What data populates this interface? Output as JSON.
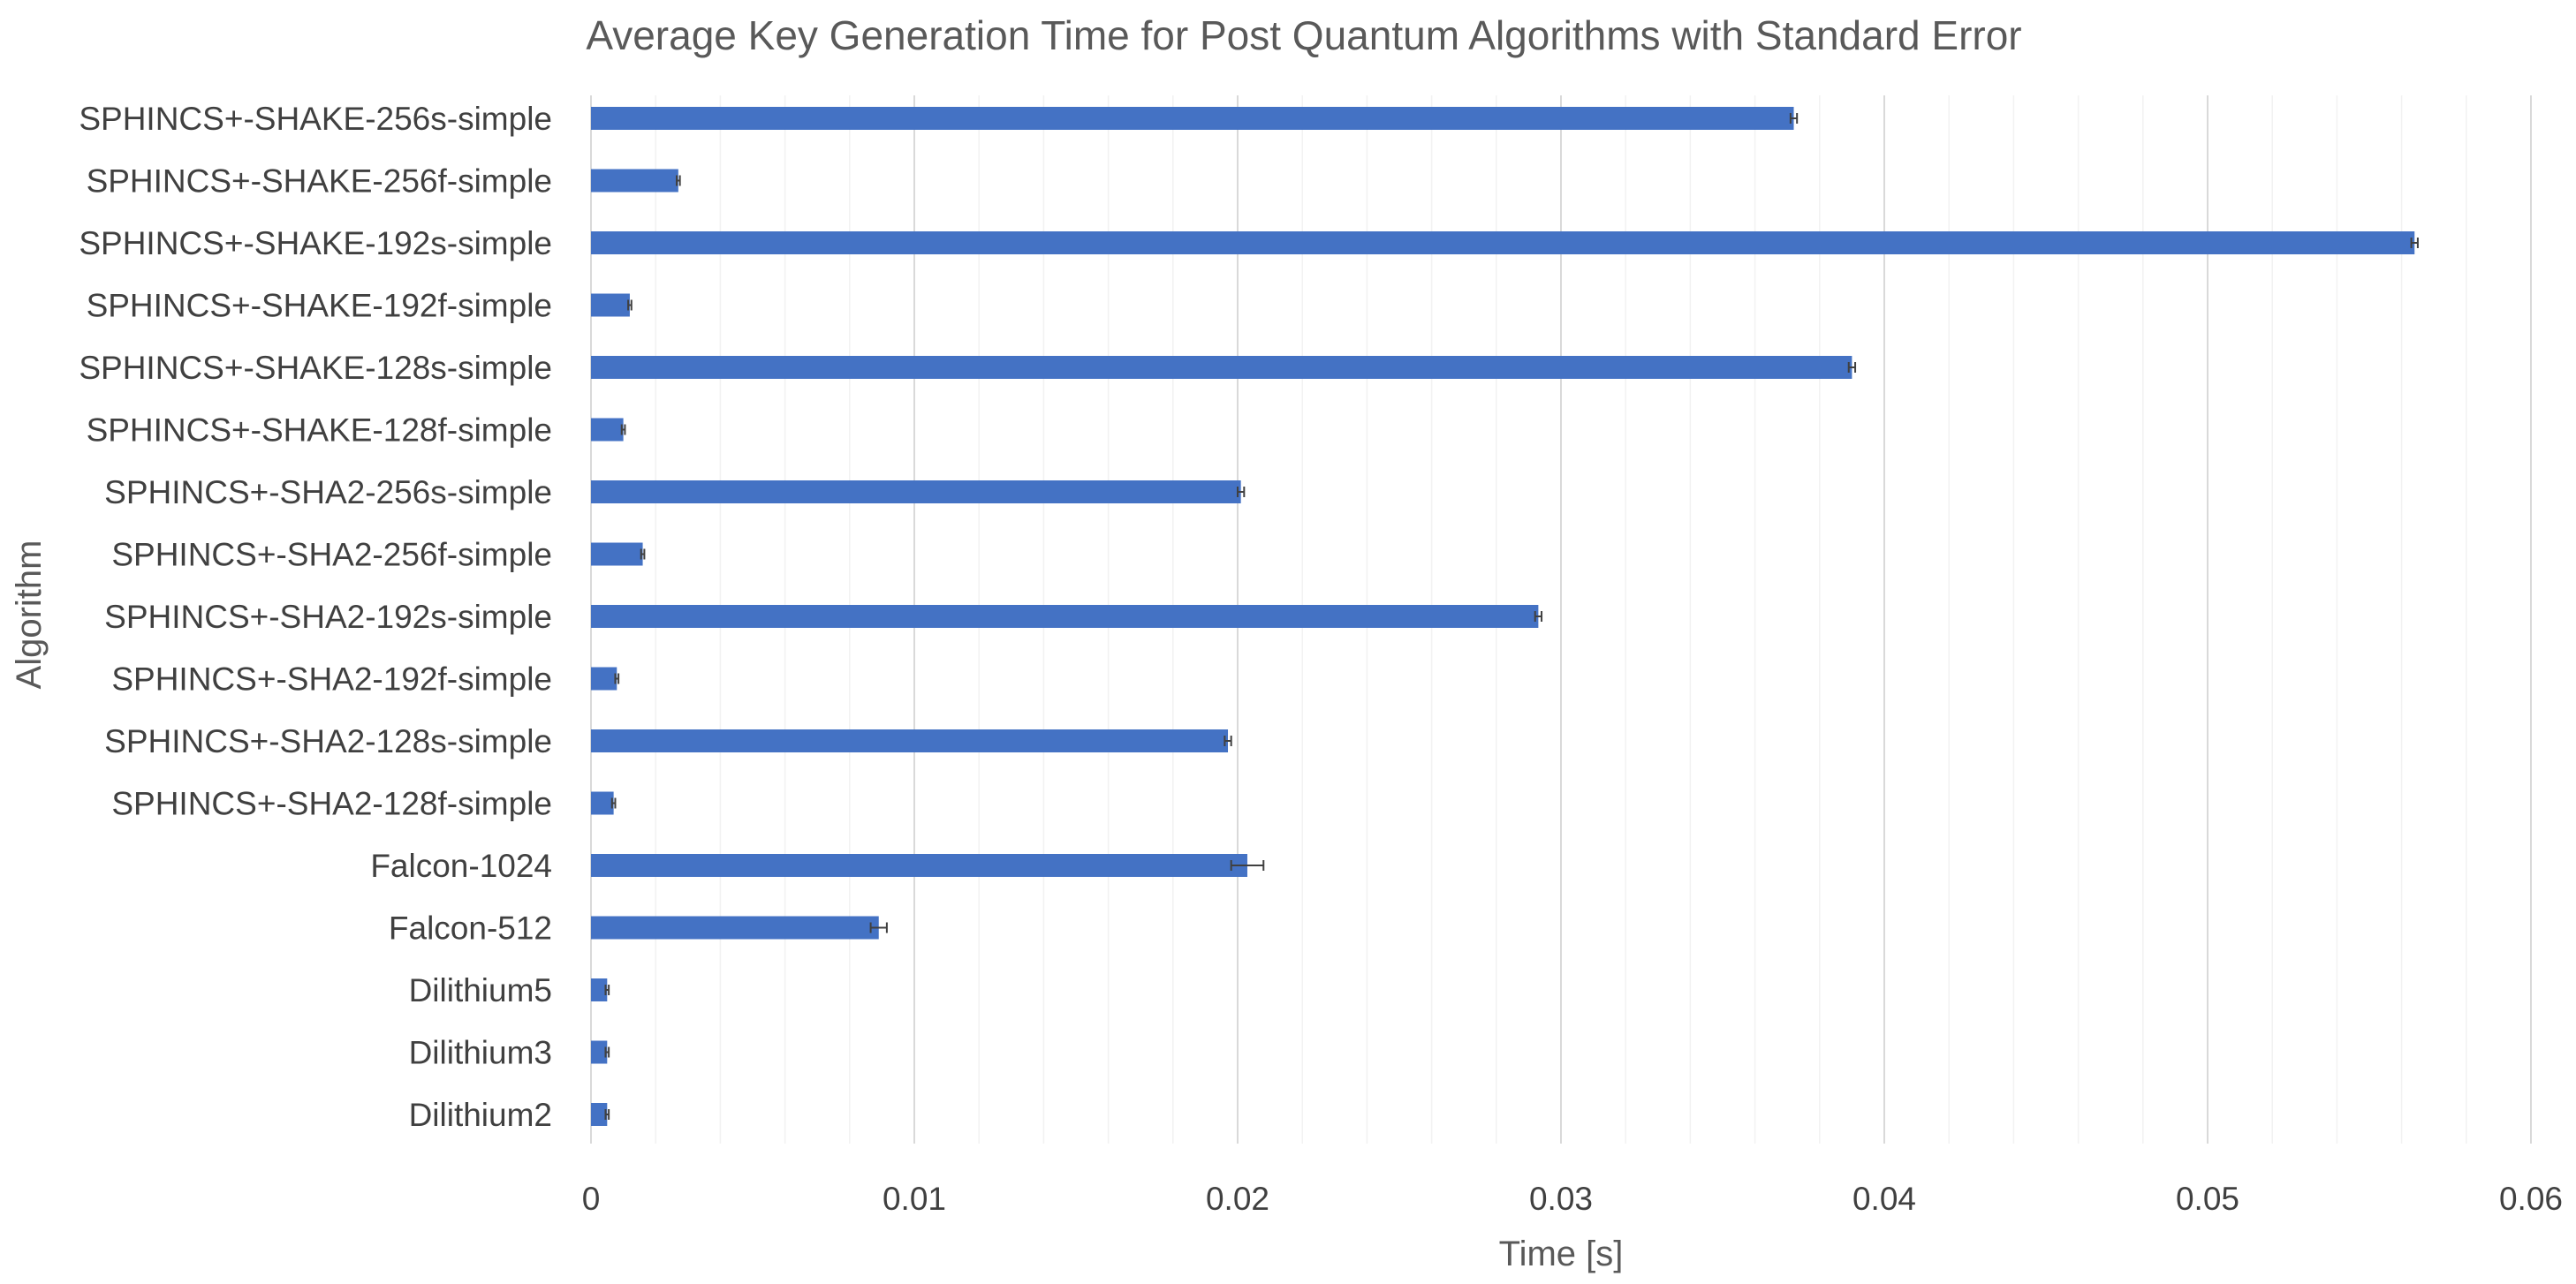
{
  "colors": {
    "bar": "#4472C4",
    "error_bar": "#404040",
    "major_grid": "#D9D9D9",
    "minor_grid": "#F2F2F2",
    "text": "#404040",
    "title": "#595959"
  },
  "chart_data": {
    "type": "bar",
    "orientation": "horizontal",
    "title": "Average Key Generation Time for Post Quantum Algorithms with Standard Error",
    "xlabel": "Time [s]",
    "ylabel": "Algorithm",
    "xlim": [
      0,
      0.06
    ],
    "x_ticks": [
      0,
      0.01,
      0.02,
      0.03,
      0.04,
      0.05,
      0.06
    ],
    "x_tick_labels": [
      "0",
      "0.01",
      "0.02",
      "0.03",
      "0.04",
      "0.05",
      "0.06"
    ],
    "minor_tick_step": 0.002,
    "grid": true,
    "legend": "none",
    "error_bars": "standard error",
    "categories": [
      "SPHINCS+-SHAKE-256s-simple",
      "SPHINCS+-SHAKE-256f-simple",
      "SPHINCS+-SHAKE-192s-simple",
      "SPHINCS+-SHAKE-192f-simple",
      "SPHINCS+-SHAKE-128s-simple",
      "SPHINCS+-SHAKE-128f-simple",
      "SPHINCS+-SHA2-256s-simple",
      "SPHINCS+-SHA2-256f-simple",
      "SPHINCS+-SHA2-192s-simple",
      "SPHINCS+-SHA2-192f-simple",
      "SPHINCS+-SHA2-128s-simple",
      "SPHINCS+-SHA2-128f-simple",
      "Falcon-1024",
      "Falcon-512",
      "Dilithium5",
      "Dilithium3",
      "Dilithium2"
    ],
    "values": [
      0.0372,
      0.0027,
      0.0564,
      0.0012,
      0.039,
      0.001,
      0.0201,
      0.0016,
      0.0293,
      0.0008,
      0.0197,
      0.0007,
      0.0203,
      0.0089,
      0.0005,
      0.0005,
      0.0005
    ],
    "errors": [
      0.0001,
      5e-05,
      0.0001,
      5e-05,
      0.0001,
      5e-05,
      0.0001,
      5e-05,
      0.0001,
      5e-05,
      0.0001,
      5e-05,
      0.0005,
      0.00025,
      5e-05,
      5e-05,
      5e-05
    ]
  }
}
